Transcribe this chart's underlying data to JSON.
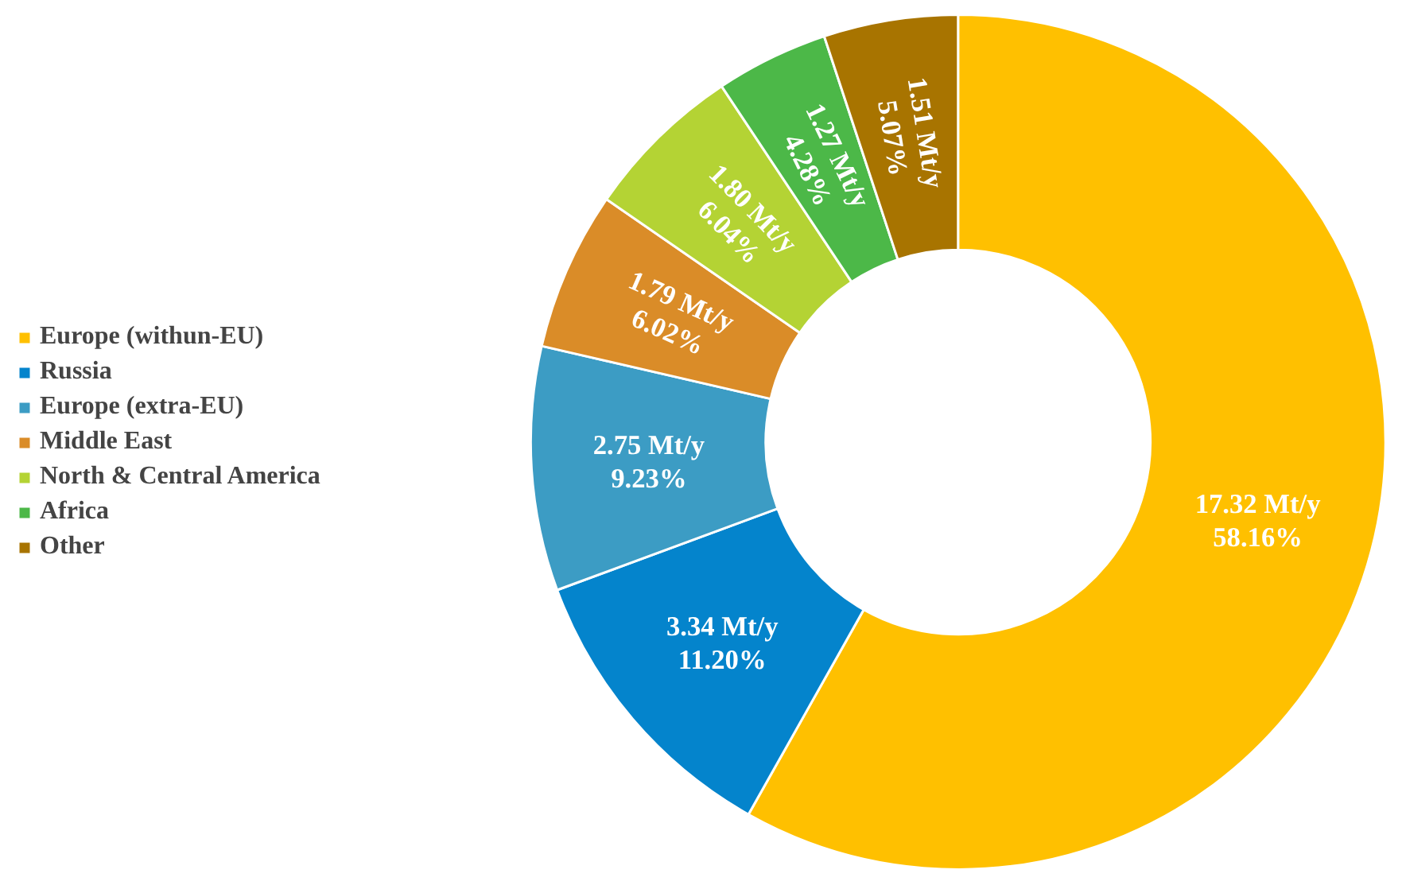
{
  "chart_data": {
    "type": "donut",
    "categories": [
      "Europe (withun-EU)",
      "Russia",
      "Europe (extra-EU)",
      "Middle East",
      "North & Central America",
      "Africa",
      "Other"
    ],
    "values": [
      17.32,
      3.34,
      2.75,
      1.79,
      1.8,
      1.27,
      1.51
    ],
    "colors": [
      "#ffc000",
      "#0484cc",
      "#3c9cc4",
      "#da8c28",
      "#b4d334",
      "#4cb848",
      "#a87400"
    ],
    "value_labels": [
      "17.32 Mt/y\n58.16%",
      "3.34 Mt/y\n11.20%",
      "2.75 Mt/y\n9.23%",
      "1.79 Mt/y\n6.02%",
      "1.80 Mt/y\n6.04%",
      "1.27 Mt/y\n4.28%",
      "1.51 Mt/y\n5.07%"
    ],
    "legend": "left"
  }
}
